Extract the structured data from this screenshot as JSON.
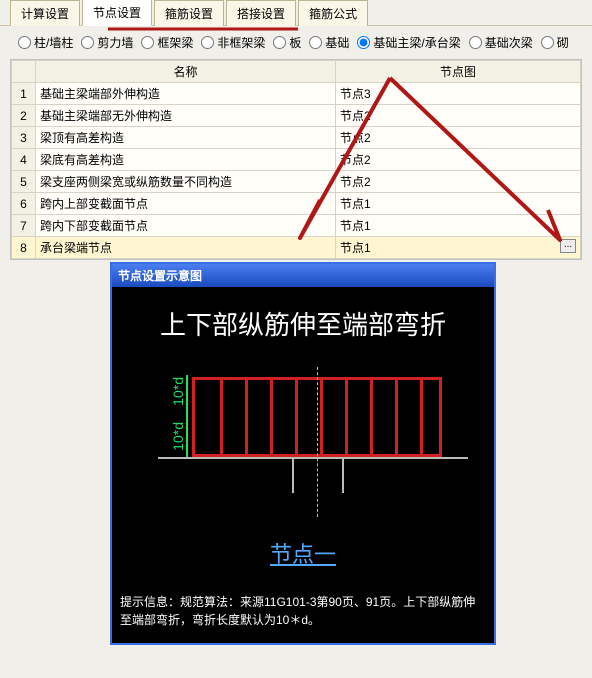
{
  "tabs": {
    "items": [
      "计算设置",
      "节点设置",
      "箍筋设置",
      "搭接设置",
      "箍筋公式"
    ],
    "active_index": 1
  },
  "radios": {
    "items": [
      "柱/墙柱",
      "剪力墙",
      "框架梁",
      "非框架梁",
      "板",
      "基础",
      "基础主梁/承台梁",
      "基础次梁",
      "砌"
    ],
    "selected_index": 6
  },
  "table": {
    "headers": [
      "名称",
      "节点图"
    ],
    "rows": [
      {
        "n": "1",
        "name": "基础主梁端部外伸构造",
        "node": "节点3"
      },
      {
        "n": "2",
        "name": "基础主梁端部无外伸构造",
        "node": "节点2"
      },
      {
        "n": "3",
        "name": "梁顶有高差构造",
        "node": "节点2"
      },
      {
        "n": "4",
        "name": "梁底有高差构造",
        "node": "节点2"
      },
      {
        "n": "5",
        "name": "梁支座两侧梁宽或纵筋数量不同构造",
        "node": "节点2"
      },
      {
        "n": "6",
        "name": "跨内上部变截面节点",
        "node": "节点1"
      },
      {
        "n": "7",
        "name": "跨内下部变截面节点",
        "node": "节点1"
      },
      {
        "n": "8",
        "name": "承台梁端节点",
        "node": "节点1"
      }
    ],
    "selected_row": 8,
    "dots": "..."
  },
  "diagram": {
    "title": "节点设置示意图",
    "headline": "上下部纵筋伸至端部弯折",
    "dim_upper": "10*d",
    "dim_lower": "10*d",
    "footer_link": "节点一",
    "beam": {
      "color": "#d02020",
      "bar_count": 10
    }
  },
  "hint": {
    "label": "提示信息：",
    "text": "规范算法：来源11G101-3第90页、91页。上下部纵筋伸至端部弯折，弯折长度默认为10＊d。"
  },
  "annotation": {
    "color": "#b01818",
    "underline_width": 190,
    "arrow": true
  }
}
